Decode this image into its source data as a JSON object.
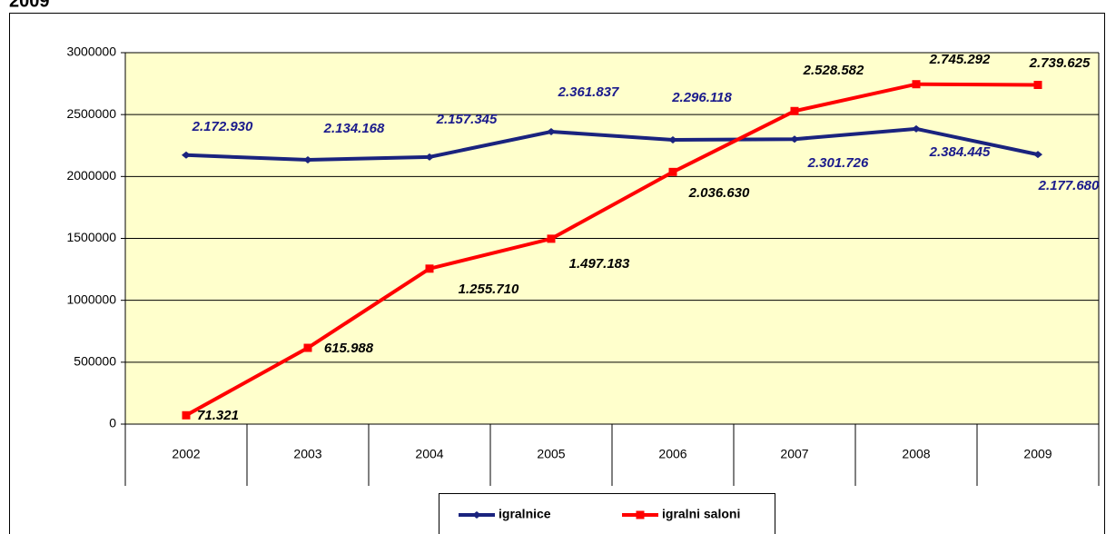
{
  "chart_data": {
    "type": "line",
    "title": "2009",
    "categories": [
      "2002",
      "2003",
      "2004",
      "2005",
      "2006",
      "2007",
      "2008",
      "2009"
    ],
    "series": [
      {
        "name": "igralnice",
        "color": "#1a237e",
        "values": [
          2172930,
          2134168,
          2157345,
          2361837,
          2296118,
          2301726,
          2384445,
          2177680
        ],
        "value_labels": [
          "2.172.930",
          "2.134.168",
          "2.157.345",
          "2.361.837",
          "2.296.118",
          "2.301.726",
          "2.384.445",
          "2.177.680"
        ]
      },
      {
        "name": "igralni saloni",
        "color": "#ff0000",
        "values": [
          71321,
          615988,
          1255710,
          1497183,
          2036630,
          2528582,
          2745292,
          2739625
        ],
        "value_labels": [
          "71.321",
          "615.988",
          "1.255.710",
          "1.497.183",
          "2.036.630",
          "2.528.582",
          "2.745.292",
          "2.739.625"
        ]
      }
    ],
    "ylim": [
      0,
      3000000
    ],
    "yticks": [
      0,
      500000,
      1000000,
      1500000,
      2000000,
      2500000,
      3000000
    ],
    "grid": true
  }
}
